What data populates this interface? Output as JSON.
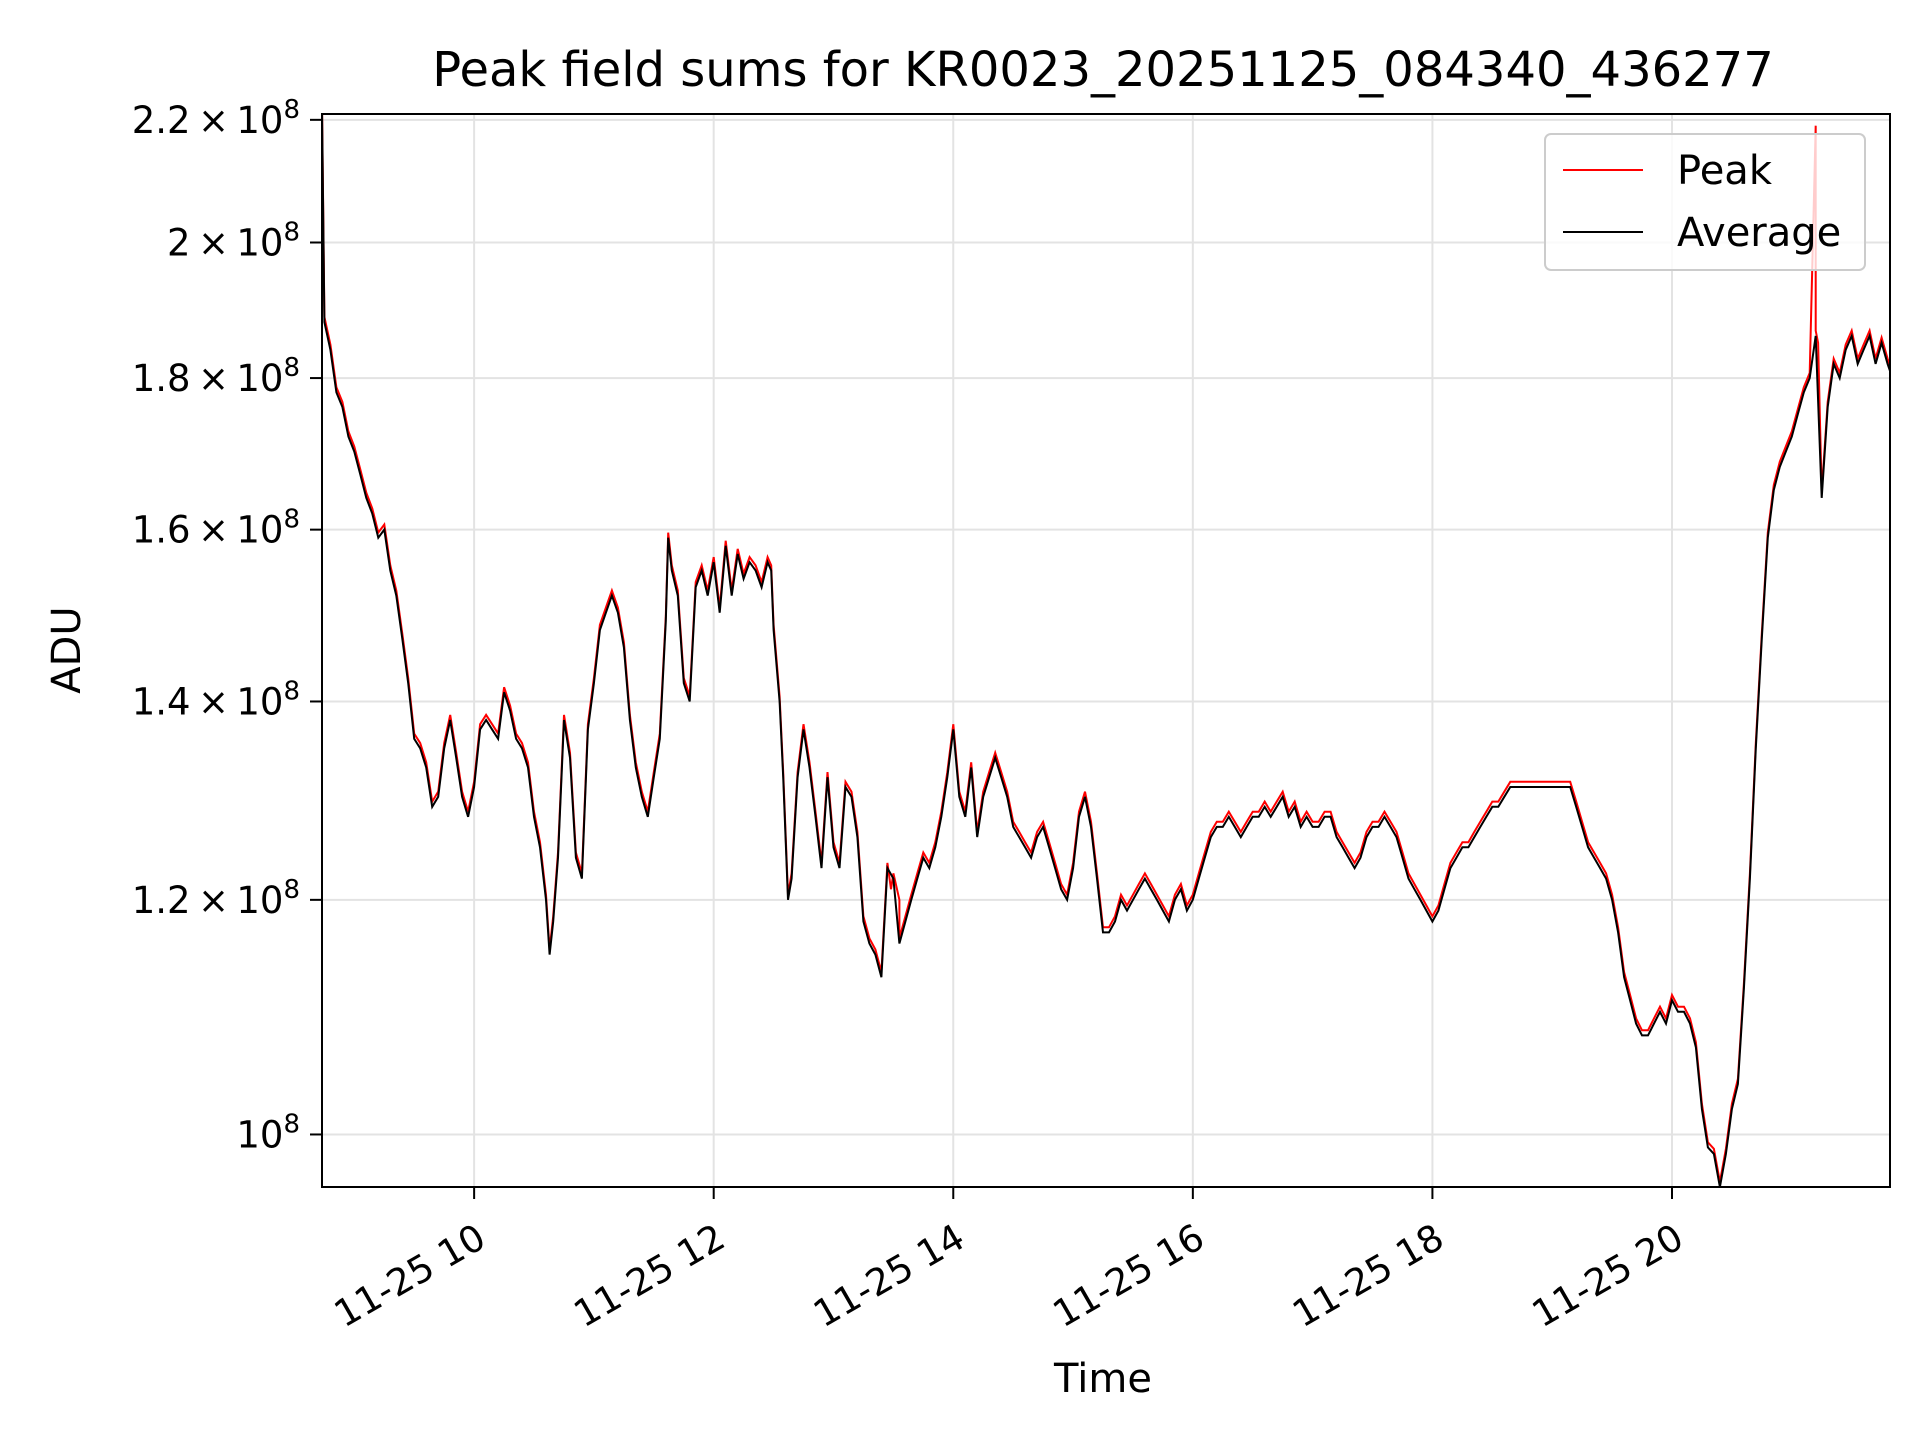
{
  "chart_data": {
    "type": "line",
    "title": "Peak field sums for KR0023_20251125_084340_436277",
    "xlabel": "Time",
    "ylabel": "ADU",
    "y_scale": "log",
    "ylim": [
      96000000,
      221000000
    ],
    "xlim_hours": [
      8.73,
      21.82
    ],
    "grid": true,
    "legend_position": "top-right",
    "x_ticks": [
      {
        "value": 10,
        "label": "11-25 10"
      },
      {
        "value": 12,
        "label": "11-25 12"
      },
      {
        "value": 14,
        "label": "11-25 14"
      },
      {
        "value": 16,
        "label": "11-25 16"
      },
      {
        "value": 18,
        "label": "11-25 18"
      },
      {
        "value": 20,
        "label": "11-25 20"
      }
    ],
    "y_ticks": [
      {
        "value": 100000000,
        "mantissa": "",
        "exponent": "8"
      },
      {
        "value": 120000000,
        "mantissa": "1.2",
        "exponent": "8"
      },
      {
        "value": 140000000,
        "mantissa": "1.4",
        "exponent": "8"
      },
      {
        "value": 160000000,
        "mantissa": "1.6",
        "exponent": "8"
      },
      {
        "value": 180000000,
        "mantissa": "1.8",
        "exponent": "8"
      },
      {
        "value": 200000000,
        "mantissa": "2",
        "exponent": "8"
      },
      {
        "value": 220000000,
        "mantissa": "2.2",
        "exponent": "8"
      }
    ],
    "x_units": "hours on 2025-11-25",
    "y_units": "ADU (x1e8)",
    "series": [
      {
        "name": "Peak",
        "color": "#ff0000",
        "stroke": "thin"
      },
      {
        "name": "Average",
        "color": "#000000",
        "stroke": "thin"
      }
    ],
    "average_points": [
      [
        8.73,
        2.22
      ],
      [
        8.75,
        1.88
      ],
      [
        8.8,
        1.84
      ],
      [
        8.85,
        1.78
      ],
      [
        8.9,
        1.76
      ],
      [
        8.95,
        1.72
      ],
      [
        9.0,
        1.7
      ],
      [
        9.05,
        1.67
      ],
      [
        9.1,
        1.64
      ],
      [
        9.15,
        1.62
      ],
      [
        9.2,
        1.59
      ],
      [
        9.25,
        1.6
      ],
      [
        9.3,
        1.55
      ],
      [
        9.35,
        1.52
      ],
      [
        9.4,
        1.47
      ],
      [
        9.45,
        1.42
      ],
      [
        9.5,
        1.36
      ],
      [
        9.55,
        1.35
      ],
      [
        9.6,
        1.33
      ],
      [
        9.65,
        1.29
      ],
      [
        9.7,
        1.3
      ],
      [
        9.75,
        1.35
      ],
      [
        9.8,
        1.38
      ],
      [
        9.85,
        1.34
      ],
      [
        9.9,
        1.3
      ],
      [
        9.95,
        1.28
      ],
      [
        10.0,
        1.31
      ],
      [
        10.05,
        1.37
      ],
      [
        10.1,
        1.38
      ],
      [
        10.15,
        1.37
      ],
      [
        10.2,
        1.36
      ],
      [
        10.25,
        1.41
      ],
      [
        10.3,
        1.39
      ],
      [
        10.35,
        1.36
      ],
      [
        10.4,
        1.35
      ],
      [
        10.45,
        1.33
      ],
      [
        10.5,
        1.28
      ],
      [
        10.55,
        1.25
      ],
      [
        10.6,
        1.2
      ],
      [
        10.63,
        1.15
      ],
      [
        10.66,
        1.18
      ],
      [
        10.7,
        1.24
      ],
      [
        10.75,
        1.38
      ],
      [
        10.8,
        1.34
      ],
      [
        10.85,
        1.24
      ],
      [
        10.9,
        1.22
      ],
      [
        10.95,
        1.37
      ],
      [
        11.0,
        1.42
      ],
      [
        11.05,
        1.48
      ],
      [
        11.1,
        1.5
      ],
      [
        11.15,
        1.52
      ],
      [
        11.2,
        1.5
      ],
      [
        11.25,
        1.46
      ],
      [
        11.3,
        1.38
      ],
      [
        11.35,
        1.33
      ],
      [
        11.4,
        1.3
      ],
      [
        11.45,
        1.28
      ],
      [
        11.5,
        1.32
      ],
      [
        11.55,
        1.36
      ],
      [
        11.6,
        1.49
      ],
      [
        11.62,
        1.59
      ],
      [
        11.65,
        1.55
      ],
      [
        11.7,
        1.52
      ],
      [
        11.75,
        1.42
      ],
      [
        11.8,
        1.4
      ],
      [
        11.85,
        1.53
      ],
      [
        11.9,
        1.55
      ],
      [
        11.95,
        1.52
      ],
      [
        12.0,
        1.56
      ],
      [
        12.05,
        1.5
      ],
      [
        12.1,
        1.58
      ],
      [
        12.15,
        1.52
      ],
      [
        12.2,
        1.57
      ],
      [
        12.25,
        1.54
      ],
      [
        12.3,
        1.56
      ],
      [
        12.35,
        1.55
      ],
      [
        12.4,
        1.53
      ],
      [
        12.45,
        1.56
      ],
      [
        12.48,
        1.55
      ],
      [
        12.5,
        1.48
      ],
      [
        12.55,
        1.4
      ],
      [
        12.58,
        1.32
      ],
      [
        12.62,
        1.2
      ],
      [
        12.65,
        1.22
      ],
      [
        12.7,
        1.32
      ],
      [
        12.75,
        1.37
      ],
      [
        12.8,
        1.33
      ],
      [
        12.85,
        1.28
      ],
      [
        12.9,
        1.23
      ],
      [
        12.95,
        1.32
      ],
      [
        13.0,
        1.25
      ],
      [
        13.05,
        1.23
      ],
      [
        13.1,
        1.31
      ],
      [
        13.15,
        1.3
      ],
      [
        13.2,
        1.26
      ],
      [
        13.25,
        1.18
      ],
      [
        13.3,
        1.16
      ],
      [
        13.35,
        1.15
      ],
      [
        13.4,
        1.13
      ],
      [
        13.45,
        1.23
      ],
      [
        13.5,
        1.22
      ],
      [
        13.55,
        1.16
      ],
      [
        13.6,
        1.18
      ],
      [
        13.65,
        1.2
      ],
      [
        13.7,
        1.22
      ],
      [
        13.75,
        1.24
      ],
      [
        13.8,
        1.23
      ],
      [
        13.85,
        1.25
      ],
      [
        13.9,
        1.28
      ],
      [
        13.95,
        1.32
      ],
      [
        14.0,
        1.37
      ],
      [
        14.05,
        1.3
      ],
      [
        14.1,
        1.28
      ],
      [
        14.15,
        1.33
      ],
      [
        14.2,
        1.26
      ],
      [
        14.25,
        1.3
      ],
      [
        14.3,
        1.32
      ],
      [
        14.35,
        1.34
      ],
      [
        14.4,
        1.32
      ],
      [
        14.45,
        1.3
      ],
      [
        14.5,
        1.27
      ],
      [
        14.55,
        1.26
      ],
      [
        14.6,
        1.25
      ],
      [
        14.65,
        1.24
      ],
      [
        14.7,
        1.26
      ],
      [
        14.75,
        1.27
      ],
      [
        14.8,
        1.25
      ],
      [
        14.85,
        1.23
      ],
      [
        14.9,
        1.21
      ],
      [
        14.95,
        1.2
      ],
      [
        15.0,
        1.23
      ],
      [
        15.05,
        1.28
      ],
      [
        15.1,
        1.3
      ],
      [
        15.15,
        1.27
      ],
      [
        15.2,
        1.22
      ],
      [
        15.25,
        1.17
      ],
      [
        15.3,
        1.17
      ],
      [
        15.35,
        1.18
      ],
      [
        15.4,
        1.2
      ],
      [
        15.45,
        1.19
      ],
      [
        15.5,
        1.2
      ],
      [
        15.55,
        1.21
      ],
      [
        15.6,
        1.22
      ],
      [
        15.65,
        1.21
      ],
      [
        15.7,
        1.2
      ],
      [
        15.75,
        1.19
      ],
      [
        15.8,
        1.18
      ],
      [
        15.85,
        1.2
      ],
      [
        15.9,
        1.21
      ],
      [
        15.95,
        1.19
      ],
      [
        16.0,
        1.2
      ],
      [
        16.05,
        1.22
      ],
      [
        16.1,
        1.24
      ],
      [
        16.15,
        1.26
      ],
      [
        16.2,
        1.27
      ],
      [
        16.25,
        1.27
      ],
      [
        16.3,
        1.28
      ],
      [
        16.35,
        1.27
      ],
      [
        16.4,
        1.26
      ],
      [
        16.45,
        1.27
      ],
      [
        16.5,
        1.28
      ],
      [
        16.55,
        1.28
      ],
      [
        16.6,
        1.29
      ],
      [
        16.65,
        1.28
      ],
      [
        16.7,
        1.29
      ],
      [
        16.75,
        1.3
      ],
      [
        16.8,
        1.28
      ],
      [
        16.85,
        1.29
      ],
      [
        16.9,
        1.27
      ],
      [
        16.95,
        1.28
      ],
      [
        17.0,
        1.27
      ],
      [
        17.05,
        1.27
      ],
      [
        17.1,
        1.28
      ],
      [
        17.15,
        1.28
      ],
      [
        17.2,
        1.26
      ],
      [
        17.25,
        1.25
      ],
      [
        17.3,
        1.24
      ],
      [
        17.35,
        1.23
      ],
      [
        17.4,
        1.24
      ],
      [
        17.45,
        1.26
      ],
      [
        17.5,
        1.27
      ],
      [
        17.55,
        1.27
      ],
      [
        17.6,
        1.28
      ],
      [
        17.65,
        1.27
      ],
      [
        17.7,
        1.26
      ],
      [
        17.75,
        1.24
      ],
      [
        17.8,
        1.22
      ],
      [
        17.85,
        1.21
      ],
      [
        17.9,
        1.2
      ],
      [
        17.95,
        1.19
      ],
      [
        18.0,
        1.18
      ],
      [
        18.05,
        1.19
      ],
      [
        18.1,
        1.21
      ],
      [
        18.15,
        1.23
      ],
      [
        18.2,
        1.24
      ],
      [
        18.25,
        1.25
      ],
      [
        18.3,
        1.25
      ],
      [
        18.35,
        1.26
      ],
      [
        18.4,
        1.27
      ],
      [
        18.45,
        1.28
      ],
      [
        18.5,
        1.29
      ],
      [
        18.55,
        1.29
      ],
      [
        18.6,
        1.3
      ],
      [
        18.65,
        1.31
      ],
      [
        18.7,
        1.31
      ],
      [
        18.75,
        1.31
      ],
      [
        18.8,
        1.31
      ],
      [
        18.85,
        1.31
      ],
      [
        18.9,
        1.31
      ],
      [
        18.95,
        1.31
      ],
      [
        19.0,
        1.31
      ],
      [
        19.05,
        1.31
      ],
      [
        19.1,
        1.31
      ],
      [
        19.15,
        1.31
      ],
      [
        19.2,
        1.29
      ],
      [
        19.25,
        1.27
      ],
      [
        19.3,
        1.25
      ],
      [
        19.35,
        1.24
      ],
      [
        19.4,
        1.23
      ],
      [
        19.45,
        1.22
      ],
      [
        19.5,
        1.2
      ],
      [
        19.55,
        1.17
      ],
      [
        19.6,
        1.13
      ],
      [
        19.65,
        1.11
      ],
      [
        19.7,
        1.09
      ],
      [
        19.75,
        1.08
      ],
      [
        19.8,
        1.08
      ],
      [
        19.85,
        1.09
      ],
      [
        19.9,
        1.1
      ],
      [
        19.95,
        1.09
      ],
      [
        20.0,
        1.11
      ],
      [
        20.05,
        1.1
      ],
      [
        20.1,
        1.1
      ],
      [
        20.15,
        1.09
      ],
      [
        20.2,
        1.07
      ],
      [
        20.25,
        1.02
      ],
      [
        20.3,
        0.99
      ],
      [
        20.35,
        0.985
      ],
      [
        20.4,
        0.96
      ],
      [
        20.45,
        0.985
      ],
      [
        20.5,
        1.02
      ],
      [
        20.55,
        1.04
      ],
      [
        20.6,
        1.12
      ],
      [
        20.65,
        1.22
      ],
      [
        20.7,
        1.35
      ],
      [
        20.75,
        1.47
      ],
      [
        20.8,
        1.59
      ],
      [
        20.85,
        1.65
      ],
      [
        20.9,
        1.68
      ],
      [
        20.95,
        1.7
      ],
      [
        21.0,
        1.72
      ],
      [
        21.05,
        1.75
      ],
      [
        21.1,
        1.78
      ],
      [
        21.15,
        1.8
      ],
      [
        21.2,
        1.86
      ],
      [
        21.25,
        1.64
      ],
      [
        21.3,
        1.76
      ],
      [
        21.35,
        1.82
      ],
      [
        21.4,
        1.8
      ],
      [
        21.45,
        1.84
      ],
      [
        21.5,
        1.86
      ],
      [
        21.55,
        1.82
      ],
      [
        21.6,
        1.84
      ],
      [
        21.65,
        1.86
      ],
      [
        21.7,
        1.82
      ],
      [
        21.75,
        1.85
      ],
      [
        21.8,
        1.82
      ],
      [
        21.82,
        1.81
      ]
    ],
    "peak_spikes": [
      [
        8.73,
        2.22
      ],
      [
        13.48,
        1.21
      ],
      [
        13.55,
        1.2
      ],
      [
        21.2,
        2.19
      ],
      [
        21.22,
        1.85
      ]
    ]
  }
}
